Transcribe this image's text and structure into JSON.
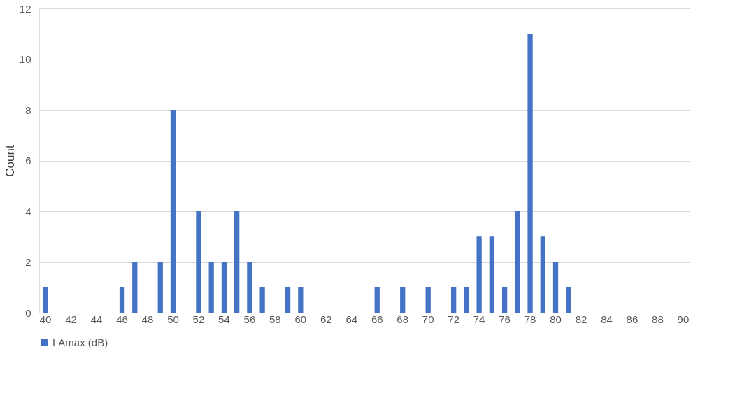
{
  "chart_data": {
    "type": "bar",
    "ylabel": "Count",
    "categories": [
      "40",
      null,
      "42",
      null,
      "44",
      null,
      "46",
      null,
      "48",
      null,
      "50",
      null,
      "52",
      null,
      "54",
      null,
      "56",
      null,
      "58",
      null,
      "60",
      null,
      "62",
      null,
      "64",
      null,
      "66",
      null,
      "68",
      null,
      "70",
      null,
      "72",
      null,
      "74",
      null,
      "76",
      null,
      "78",
      null,
      "80",
      null,
      "82",
      null,
      "84",
      null,
      "86",
      null,
      "88",
      null,
      "90"
    ],
    "series": [
      {
        "name": "LAmax (dB)",
        "color": "#4472c4",
        "values": [
          1,
          0,
          0,
          0,
          0,
          0,
          1,
          2,
          0,
          2,
          8,
          0,
          4,
          2,
          2,
          4,
          2,
          1,
          0,
          1,
          1,
          0,
          0,
          0,
          0,
          0,
          1,
          0,
          1,
          0,
          1,
          0,
          1,
          1,
          3,
          3,
          1,
          4,
          11,
          3,
          2,
          1,
          0,
          0,
          0,
          0,
          0,
          0,
          0,
          0,
          0
        ]
      }
    ],
    "ylim": [
      0,
      12
    ],
    "yticks": [
      0,
      2,
      4,
      6,
      8,
      10,
      12
    ],
    "grid": "y",
    "legend": "bottom"
  }
}
